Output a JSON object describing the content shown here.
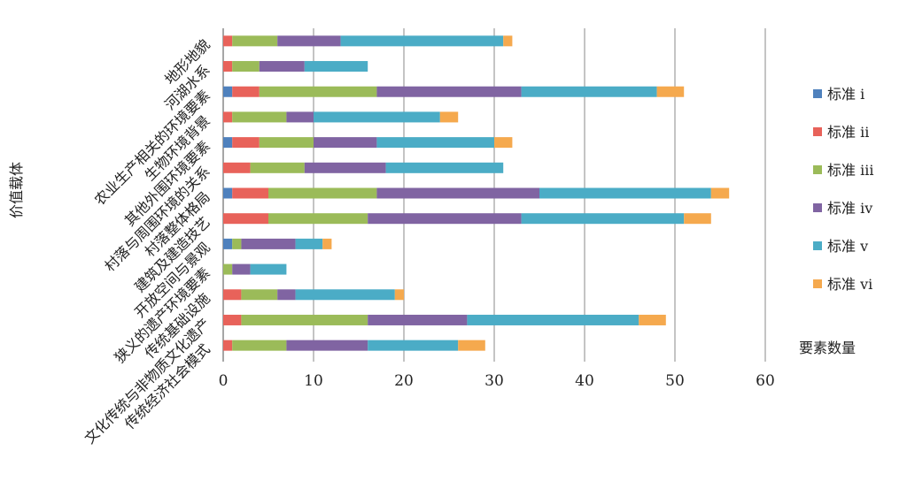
{
  "chart_data": {
    "type": "bar",
    "orientation": "horizontal",
    "stacked": true,
    "title": "",
    "xlabel": "要素数量",
    "ylabel": "价值载体",
    "xlim": [
      0,
      60
    ],
    "xticks": [
      0,
      10,
      20,
      30,
      40,
      50,
      60
    ],
    "grid": "vertical",
    "legend_position": "right",
    "categories": [
      "地形地貌",
      "河湖水系",
      "农业生产相关的环境要素",
      "生物环境背景",
      "其他外围环境要素",
      "村落与周围环境的关系",
      "村落整体格局",
      "建筑及建造技艺",
      "开放空间与景观",
      "狭义的遗产环境要素",
      "传统基础设施",
      "文化传统与非物质文化遗产",
      "传统经济社会模式"
    ],
    "series": [
      {
        "name": "标准 i",
        "color": "#4f81bd",
        "values": [
          0,
          0,
          1,
          0,
          1,
          0,
          1,
          0,
          1,
          0,
          0,
          0,
          0
        ]
      },
      {
        "name": "标准 ii",
        "color": "#e8625a",
        "values": [
          1,
          1,
          3,
          1,
          3,
          3,
          4,
          5,
          0,
          0,
          2,
          2,
          1
        ]
      },
      {
        "name": "标准 iii",
        "color": "#9bbb59",
        "values": [
          5,
          3,
          13,
          6,
          6,
          6,
          12,
          11,
          1,
          1,
          4,
          14,
          6
        ]
      },
      {
        "name": "标准 iv",
        "color": "#8064a2",
        "values": [
          7,
          5,
          16,
          3,
          7,
          9,
          18,
          17,
          6,
          2,
          2,
          11,
          9
        ]
      },
      {
        "name": "标准 v",
        "color": "#4bacc6",
        "values": [
          18,
          7,
          15,
          14,
          13,
          13,
          19,
          18,
          3,
          4,
          11,
          19,
          10
        ]
      },
      {
        "name": "标准 vi",
        "color": "#f5a94e",
        "values": [
          1,
          0,
          3,
          2,
          2,
          0,
          2,
          3,
          1,
          0,
          1,
          3,
          3
        ]
      }
    ]
  }
}
